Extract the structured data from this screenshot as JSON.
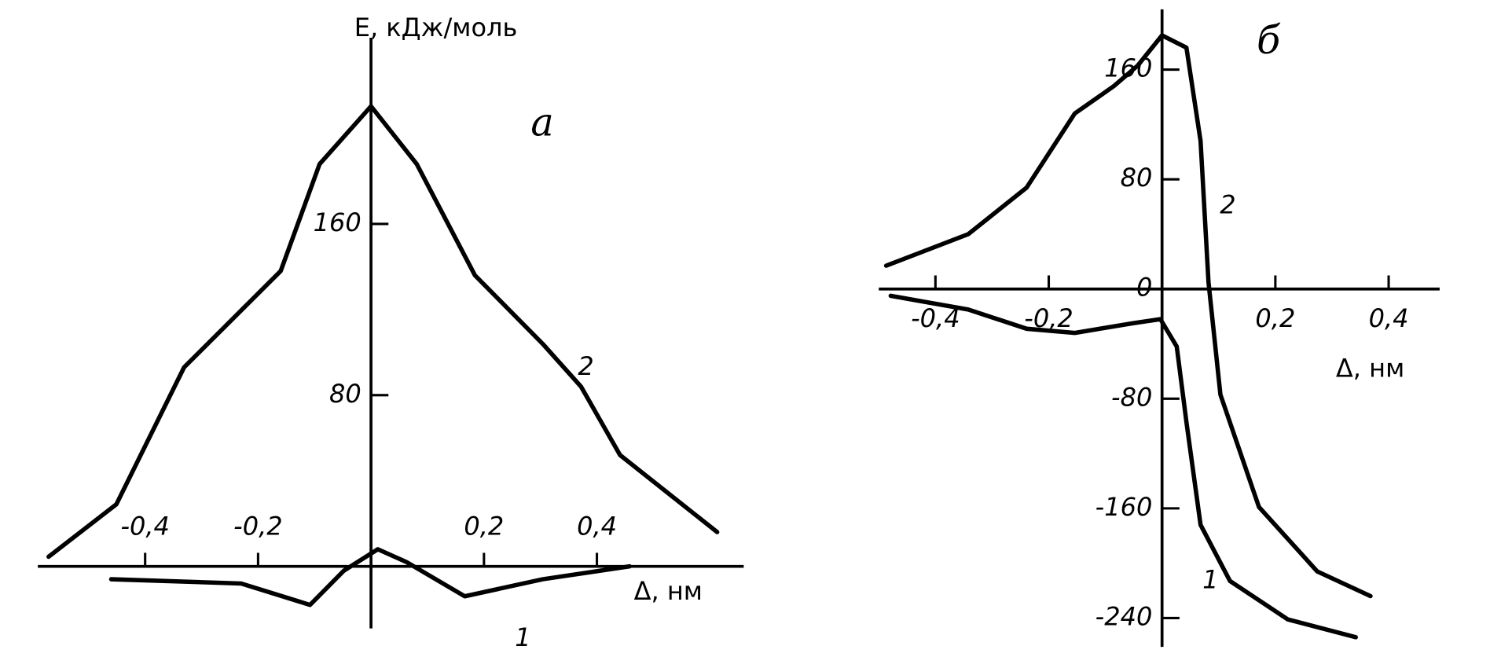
{
  "chart_data": [
    {
      "type": "line",
      "title": "а",
      "xlabel": "Δ, нм",
      "ylabel": "E, кДж/моль",
      "xlim": [
        -0.59,
        0.66
      ],
      "ylim": [
        -29,
        247
      ],
      "xticks": [
        {
          "value": -0.4,
          "label": "-0,4"
        },
        {
          "value": -0.2,
          "label": "-0,2"
        },
        {
          "value": 0.2,
          "label": "0,2"
        },
        {
          "value": 0.4,
          "label": "0,4"
        }
      ],
      "yticks": [
        80,
        160
      ],
      "series": [
        {
          "name": "2",
          "color": "#000000",
          "x": [
            -0.571,
            -0.451,
            -0.331,
            -0.16,
            -0.091,
            0,
            0.081,
            0.184,
            0.304,
            0.372,
            0.441,
            0.613
          ],
          "values": [
            4.5,
            29,
            93,
            138,
            188,
            215,
            188,
            136,
            104,
            84,
            52,
            16
          ]
        },
        {
          "name": "1",
          "color": "#000000",
          "x": [
            -0.46,
            -0.23,
            -0.108,
            -0.048,
            0.012,
            0.063,
            0.166,
            0.304,
            0.458
          ],
          "values": [
            -6,
            -8,
            -18,
            -2,
            8,
            2,
            -14,
            -6,
            0
          ]
        }
      ]
    },
    {
      "type": "line",
      "title": "б",
      "xlabel": "Δ, нм",
      "xlim": [
        -0.5,
        0.49
      ],
      "ylim": [
        -261,
        204
      ],
      "xticks": [
        {
          "value": -0.4,
          "label": "-0,4"
        },
        {
          "value": -0.2,
          "label": "-0,2"
        },
        {
          "value": 0.2,
          "label": "0,2"
        },
        {
          "value": 0.4,
          "label": "0,4"
        }
      ],
      "yticks": [
        -240,
        -160,
        -80,
        0,
        80,
        160
      ],
      "series": [
        {
          "name": "2",
          "color": "#000000",
          "x": [
            -0.487,
            -0.342,
            -0.239,
            -0.154,
            -0.085,
            -0.043,
            0,
            0.043,
            0.068,
            0.082,
            0.103,
            0.171,
            0.274,
            0.368
          ],
          "values": [
            17,
            40,
            74,
            128,
            148,
            163,
            185,
            176,
            108,
            5,
            -77,
            -159,
            -206,
            -224
          ]
        },
        {
          "name": "1",
          "color": "#000000",
          "x": [
            -0.479,
            -0.342,
            -0.239,
            -0.154,
            -0.051,
            -0.003,
            0.026,
            0.043,
            0.068,
            0.12,
            0.222,
            0.342
          ],
          "values": [
            -5,
            -15,
            -29,
            -32,
            -25,
            -22,
            -42,
            -97,
            -172,
            -213,
            -241,
            -254
          ]
        }
      ]
    }
  ]
}
